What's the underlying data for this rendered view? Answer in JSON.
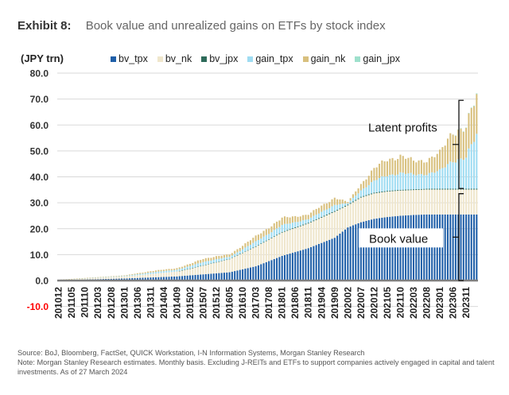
{
  "header": {
    "exhibit_label": "Exhibit 8:",
    "title": "Book value and unrealized gains on ETFs by stock index"
  },
  "footer": {
    "source": "Source: BoJ, Bloomberg, FactSet, QUICK Workstation, I-N Information Systems, Morgan Stanley Research",
    "note": "Note: Morgan Stanley Research estimates. Monthly basis. Excluding J-REITs and ETFs to support companies actively engaged in capital and talent investments. As of 27 March 2024"
  },
  "chart_data": {
    "type": "bar",
    "stacked": true,
    "title": "Book value and unrealized gains on ETFs by stock index",
    "ylabel": "(JPY trn)",
    "xlabel": "",
    "ylim": [
      -10,
      80
    ],
    "yticks": [
      {
        "value": 80,
        "label": "80.0"
      },
      {
        "value": 70,
        "label": "70.0"
      },
      {
        "value": 60,
        "label": "60.0"
      },
      {
        "value": 50,
        "label": "50.0"
      },
      {
        "value": 40,
        "label": "40.0"
      },
      {
        "value": 30,
        "label": "30.0"
      },
      {
        "value": 20,
        "label": "20.0"
      },
      {
        "value": 10,
        "label": "10.0"
      },
      {
        "value": 0,
        "label": "0.0"
      },
      {
        "value": -10,
        "label": "-10.0",
        "color": "#ff0000"
      }
    ],
    "grid": true,
    "legend_position": "top",
    "x_start": "201012",
    "x_end": "202403",
    "x_frequency": "monthly",
    "xtick_labels": [
      "201012",
      "201105",
      "201110",
      "201203",
      "201208",
      "201301",
      "201306",
      "201311",
      "201404",
      "201409",
      "201502",
      "201507",
      "201512",
      "201605",
      "201610",
      "201703",
      "201708",
      "201801",
      "201806",
      "201811",
      "201904",
      "201909",
      "202002",
      "202007",
      "202012",
      "202105",
      "202110",
      "202203",
      "202208",
      "202301",
      "202306",
      "202311"
    ],
    "series_info": [
      {
        "name": "bv_tpx",
        "color": "#1f5fa8"
      },
      {
        "name": "bv_nk",
        "color": "#efe6cc"
      },
      {
        "name": "bv_jpx",
        "color": "#2e6b5a"
      },
      {
        "name": "gain_tpx",
        "color": "#9fdcf2"
      },
      {
        "name": "gain_nk",
        "color": "#d8c07e"
      },
      {
        "name": "gain_jpx",
        "color": "#9ee0cc"
      }
    ],
    "anchors_note": "Approximate values read from chart at anchor months; months in between are linearly interpolated",
    "anchors": [
      {
        "month": "201012",
        "bv_tpx": 0.15,
        "bv_nk": 0.15,
        "bv_jpx": 0,
        "gain_tpx": 0.0,
        "gain_nk": 0.0,
        "gain_jpx": 0
      },
      {
        "month": "201301",
        "bv_tpx": 0.8,
        "bv_nk": 0.8,
        "bv_jpx": 0,
        "gain_tpx": 0.2,
        "gain_nk": 0.2,
        "gain_jpx": 0
      },
      {
        "month": "201311",
        "bv_tpx": 1.2,
        "bv_nk": 1.3,
        "bv_jpx": 0,
        "gain_tpx": 0.6,
        "gain_nk": 0.5,
        "gain_jpx": 0
      },
      {
        "month": "201409",
        "bv_tpx": 1.6,
        "bv_nk": 1.9,
        "bv_jpx": 0,
        "gain_tpx": 0.7,
        "gain_nk": 0.6,
        "gain_jpx": 0
      },
      {
        "month": "201502",
        "bv_tpx": 2.0,
        "bv_nk": 2.6,
        "bv_jpx": 0.05,
        "gain_tpx": 0.9,
        "gain_nk": 0.8,
        "gain_jpx": 0
      },
      {
        "month": "201507",
        "bv_tpx": 2.4,
        "bv_nk": 3.4,
        "bv_jpx": 0.1,
        "gain_tpx": 1.3,
        "gain_nk": 1.3,
        "gain_jpx": 0
      },
      {
        "month": "201605",
        "bv_tpx": 3.2,
        "bv_nk": 5.0,
        "bv_jpx": 0.15,
        "gain_tpx": 0.8,
        "gain_nk": 0.9,
        "gain_jpx": 0
      },
      {
        "month": "201703",
        "bv_tpx": 5.5,
        "bv_nk": 7.5,
        "bv_jpx": 0.2,
        "gain_tpx": 1.8,
        "gain_nk": 2.0,
        "gain_jpx": 0
      },
      {
        "month": "201801",
        "bv_tpx": 9.5,
        "bv_nk": 9.0,
        "bv_jpx": 0.25,
        "gain_tpx": 2.6,
        "gain_nk": 2.7,
        "gain_jpx": 0
      },
      {
        "month": "201811",
        "bv_tpx": 12.5,
        "bv_nk": 9.5,
        "bv_jpx": 0.3,
        "gain_tpx": 1.4,
        "gain_nk": 1.8,
        "gain_jpx": 0
      },
      {
        "month": "201909",
        "bv_tpx": 16.5,
        "bv_nk": 10.0,
        "bv_jpx": 0.3,
        "gain_tpx": 2.4,
        "gain_nk": 2.8,
        "gain_jpx": 0
      },
      {
        "month": "202002",
        "bv_tpx": 20.5,
        "bv_nk": 8.5,
        "bv_jpx": 0.3,
        "gain_tpx": 0.5,
        "gain_nk": 0.5,
        "gain_jpx": 0
      },
      {
        "month": "202007",
        "bv_tpx": 22.5,
        "bv_nk": 9.5,
        "bv_jpx": 0.3,
        "gain_tpx": 2.5,
        "gain_nk": 2.5,
        "gain_jpx": 0
      },
      {
        "month": "202012",
        "bv_tpx": 23.8,
        "bv_nk": 9.8,
        "bv_jpx": 0.3,
        "gain_tpx": 4.5,
        "gain_nk": 4.6,
        "gain_jpx": 0
      },
      {
        "month": "202105",
        "bv_tpx": 24.5,
        "bv_nk": 9.8,
        "bv_jpx": 0.3,
        "gain_tpx": 6.0,
        "gain_nk": 6.2,
        "gain_jpx": 0
      },
      {
        "month": "202110",
        "bv_tpx": 25.0,
        "bv_nk": 9.7,
        "bv_jpx": 0.3,
        "gain_tpx": 6.5,
        "gain_nk": 6.5,
        "gain_jpx": 0
      },
      {
        "month": "202203",
        "bv_tpx": 25.3,
        "bv_nk": 9.6,
        "bv_jpx": 0.3,
        "gain_tpx": 5.6,
        "gain_nk": 5.2,
        "gain_jpx": 0
      },
      {
        "month": "202208",
        "bv_tpx": 25.5,
        "bv_nk": 9.6,
        "bv_jpx": 0.3,
        "gain_tpx": 5.8,
        "gain_nk": 5.4,
        "gain_jpx": 0
      },
      {
        "month": "202301",
        "bv_tpx": 25.5,
        "bv_nk": 9.6,
        "bv_jpx": 0.3,
        "gain_tpx": 6.8,
        "gain_nk": 6.8,
        "gain_jpx": 0
      },
      {
        "month": "202306",
        "bv_tpx": 25.5,
        "bv_nk": 9.6,
        "bv_jpx": 0.3,
        "gain_tpx": 11.0,
        "gain_nk": 11.5,
        "gain_jpx": 0
      },
      {
        "month": "202311",
        "bv_tpx": 25.5,
        "bv_nk": 9.6,
        "bv_jpx": 0.3,
        "gain_tpx": 12.0,
        "gain_nk": 11.5,
        "gain_jpx": 0.1
      },
      {
        "month": "202403",
        "bv_tpx": 25.5,
        "bv_nk": 9.6,
        "bv_jpx": 0.3,
        "gain_tpx": 20.5,
        "gain_nk": 14.8,
        "gain_jpx": 0.3
      }
    ],
    "annotations": [
      {
        "text": "Latent profits",
        "range": [
          35.5,
          69.5
        ]
      },
      {
        "text": "Book value",
        "range": [
          0,
          33.5
        ]
      }
    ]
  }
}
